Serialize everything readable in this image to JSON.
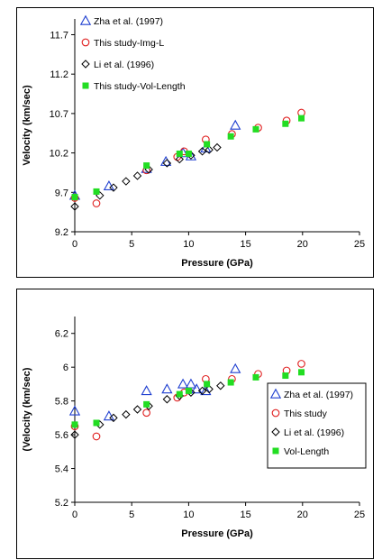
{
  "chart_data": [
    {
      "type": "scatter",
      "title": "",
      "xlabel": "Pressure (GPa)",
      "ylabel": "Velocity (km/sec)",
      "xlim": [
        0,
        25
      ],
      "ylim": [
        9.2,
        11.9
      ],
      "xticks": [
        "0",
        "5",
        "10",
        "15",
        "20",
        "25"
      ],
      "yticks": [
        "9.2",
        "9.7",
        "10.2",
        "10.7",
        "11.2",
        "11.7"
      ],
      "grid": false,
      "legend_position": "top-left",
      "series": [
        {
          "name": "Zha et al. (1997)",
          "marker": "triangle-open",
          "color": "#1f3fd0",
          "points": [
            [
              0,
              9.66
            ],
            [
              3.0,
              9.78
            ],
            [
              6.3,
              10.0
            ],
            [
              8.0,
              10.09
            ],
            [
              9.5,
              10.2
            ],
            [
              10.2,
              10.16
            ],
            [
              11.5,
              10.26
            ],
            [
              14.1,
              10.55
            ]
          ]
        },
        {
          "name": "This study-Img-L",
          "marker": "circle-open",
          "color": "#e02020",
          "points": [
            [
              0,
              9.63
            ],
            [
              1.9,
              9.56
            ],
            [
              6.3,
              9.98
            ],
            [
              9.0,
              10.15
            ],
            [
              9.6,
              10.22
            ],
            [
              11.5,
              10.37
            ],
            [
              13.8,
              10.44
            ],
            [
              16.1,
              10.52
            ],
            [
              18.6,
              10.61
            ],
            [
              19.9,
              10.71
            ]
          ]
        },
        {
          "name": "Li et al. (1996)",
          "marker": "diamond-open",
          "color": "#000000",
          "points": [
            [
              0,
              9.52
            ],
            [
              2.2,
              9.66
            ],
            [
              3.4,
              9.76
            ],
            [
              4.5,
              9.84
            ],
            [
              5.5,
              9.91
            ],
            [
              6.5,
              9.99
            ],
            [
              8.1,
              10.07
            ],
            [
              9.2,
              10.12
            ],
            [
              10.2,
              10.17
            ],
            [
              11.2,
              10.22
            ],
            [
              11.8,
              10.24
            ],
            [
              12.5,
              10.27
            ]
          ]
        },
        {
          "name": "This study-Vol-Length",
          "marker": "square-filled",
          "color": "#22dd22",
          "points": [
            [
              0,
              9.64
            ],
            [
              1.9,
              9.71
            ],
            [
              6.3,
              10.04
            ],
            [
              9.2,
              10.19
            ],
            [
              10.0,
              10.19
            ],
            [
              11.6,
              10.31
            ],
            [
              13.7,
              10.41
            ],
            [
              15.9,
              10.5
            ],
            [
              18.5,
              10.57
            ],
            [
              19.9,
              10.64
            ]
          ]
        }
      ]
    },
    {
      "type": "scatter",
      "title": "",
      "xlabel": "Pressure (GPa)",
      "ylabel": "(Velocity (km/sec)",
      "xlim": [
        0,
        25
      ],
      "ylim": [
        5.2,
        6.3
      ],
      "xticks": [
        "0",
        "5",
        "10",
        "15",
        "20",
        "25"
      ],
      "yticks": [
        "5.2",
        "5.4",
        "5.6",
        "5.8",
        "6",
        "6.2"
      ],
      "grid": false,
      "legend_position": "right",
      "series": [
        {
          "name": "Zha et al. (1997)",
          "marker": "triangle-open",
          "color": "#1f3fd0",
          "points": [
            [
              0,
              5.74
            ],
            [
              3.0,
              5.71
            ],
            [
              6.3,
              5.86
            ],
            [
              8.1,
              5.87
            ],
            [
              9.5,
              5.9
            ],
            [
              10.2,
              5.9
            ],
            [
              10.7,
              5.87
            ],
            [
              11.5,
              5.86
            ],
            [
              14.1,
              5.99
            ]
          ]
        },
        {
          "name": "This study",
          "marker": "circle-open",
          "color": "#e02020",
          "points": [
            [
              0,
              5.65
            ],
            [
              1.9,
              5.59
            ],
            [
              6.3,
              5.73
            ],
            [
              9.0,
              5.82
            ],
            [
              9.6,
              5.85
            ],
            [
              11.5,
              5.93
            ],
            [
              13.8,
              5.93
            ],
            [
              16.1,
              5.96
            ],
            [
              18.6,
              5.98
            ],
            [
              19.9,
              6.02
            ]
          ]
        },
        {
          "name": "Li et al. (1996)",
          "marker": "diamond-open",
          "color": "#000000",
          "points": [
            [
              0,
              5.6
            ],
            [
              2.2,
              5.66
            ],
            [
              3.4,
              5.7
            ],
            [
              4.5,
              5.72
            ],
            [
              5.5,
              5.75
            ],
            [
              6.5,
              5.77
            ],
            [
              8.1,
              5.81
            ],
            [
              9.2,
              5.83
            ],
            [
              10.2,
              5.85
            ],
            [
              11.2,
              5.86
            ],
            [
              11.8,
              5.87
            ],
            [
              12.8,
              5.89
            ]
          ]
        },
        {
          "name": "Vol-Length",
          "marker": "square-filled",
          "color": "#22dd22",
          "points": [
            [
              0,
              5.66
            ],
            [
              1.9,
              5.67
            ],
            [
              6.3,
              5.78
            ],
            [
              9.2,
              5.84
            ],
            [
              10.0,
              5.86
            ],
            [
              11.6,
              5.9
            ],
            [
              13.7,
              5.91
            ],
            [
              15.9,
              5.94
            ],
            [
              18.5,
              5.95
            ],
            [
              19.9,
              5.97
            ]
          ]
        }
      ]
    }
  ]
}
